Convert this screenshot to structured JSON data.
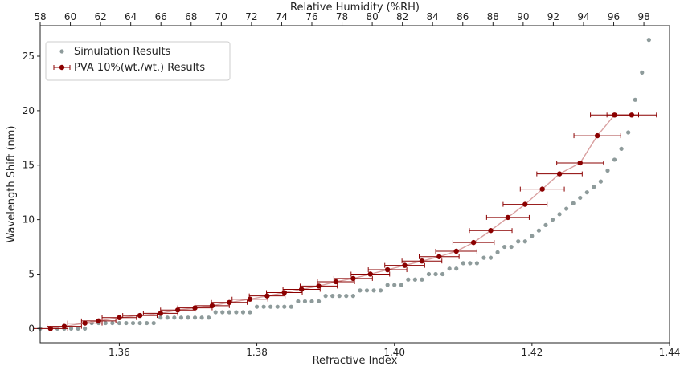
{
  "chart_data": {
    "type": "scatter",
    "xlabel": "Refractive Index",
    "ylabel": "Wavelength Shift (nm)",
    "x2label": "Relative Humidity (%RH)",
    "xlim": [
      1.3485,
      1.44
    ],
    "ylim": [
      -1.3,
      27.8
    ],
    "x2lim": [
      58.0,
      99.7
    ],
    "xticks": [
      1.36,
      1.38,
      1.4,
      1.42,
      1.44
    ],
    "xtick_labels": [
      "1.36",
      "1.38",
      "1.40",
      "1.42",
      "1.44"
    ],
    "yticks": [
      0,
      5,
      10,
      15,
      20,
      25
    ],
    "ytick_labels": [
      "0",
      "5",
      "10",
      "15",
      "20",
      "25"
    ],
    "x2ticks": [
      58,
      60,
      62,
      64,
      66,
      68,
      70,
      72,
      74,
      76,
      78,
      80,
      82,
      84,
      86,
      88,
      90,
      92,
      94,
      96,
      98
    ],
    "x2tick_labels": [
      "58",
      "60",
      "62",
      "64",
      "66",
      "68",
      "70",
      "72",
      "74",
      "76",
      "78",
      "80",
      "82",
      "84",
      "86",
      "88",
      "90",
      "92",
      "94",
      "96",
      "98"
    ],
    "grid": false,
    "legend_position": "top-left",
    "series": [
      {
        "name": "Simulation Results",
        "kind": "scatter",
        "color": "#8e9b9b",
        "x": [
          1.3485,
          1.35,
          1.351,
          1.352,
          1.353,
          1.354,
          1.355,
          1.356,
          1.357,
          1.358,
          1.359,
          1.36,
          1.361,
          1.362,
          1.363,
          1.364,
          1.365,
          1.366,
          1.367,
          1.368,
          1.369,
          1.37,
          1.371,
          1.372,
          1.373,
          1.374,
          1.375,
          1.376,
          1.377,
          1.378,
          1.379,
          1.38,
          1.381,
          1.382,
          1.383,
          1.384,
          1.385,
          1.386,
          1.387,
          1.388,
          1.389,
          1.39,
          1.391,
          1.392,
          1.393,
          1.394,
          1.395,
          1.396,
          1.397,
          1.398,
          1.399,
          1.4,
          1.401,
          1.402,
          1.403,
          1.404,
          1.405,
          1.406,
          1.407,
          1.408,
          1.409,
          1.41,
          1.411,
          1.412,
          1.413,
          1.414,
          1.415,
          1.416,
          1.417,
          1.418,
          1.419,
          1.42,
          1.421,
          1.422,
          1.423,
          1.424,
          1.425,
          1.426,
          1.427,
          1.428,
          1.429,
          1.43,
          1.431,
          1.432,
          1.433,
          1.434,
          1.435,
          1.436,
          1.437
        ],
        "y": [
          0,
          0,
          0,
          0,
          0,
          0,
          0,
          0.5,
          0.5,
          0.5,
          0.5,
          0.5,
          0.5,
          0.5,
          0.5,
          0.5,
          0.5,
          1,
          1,
          1,
          1,
          1,
          1,
          1,
          1,
          1.5,
          1.5,
          1.5,
          1.5,
          1.5,
          1.5,
          2,
          2,
          2,
          2,
          2,
          2,
          2.5,
          2.5,
          2.5,
          2.5,
          3,
          3,
          3,
          3,
          3,
          3.5,
          3.5,
          3.5,
          3.5,
          4,
          4,
          4,
          4.5,
          4.5,
          4.5,
          5,
          5,
          5,
          5.5,
          5.5,
          6,
          6,
          6,
          6.5,
          6.5,
          7,
          7.5,
          7.5,
          8,
          8,
          8.5,
          9,
          9.5,
          10,
          10.5,
          11,
          11.5,
          12,
          12.5,
          13,
          13.5,
          14.5,
          15.5,
          16.5,
          18,
          21,
          23.5,
          26.5
        ]
      },
      {
        "name": "PVA 10%(wt./wt.) Results",
        "kind": "errorbar",
        "color": "#8b0000",
        "line_color": "#d9a0a0",
        "x": [
          1.35,
          1.352,
          1.355,
          1.357,
          1.36,
          1.363,
          1.366,
          1.3685,
          1.371,
          1.3735,
          1.376,
          1.379,
          1.3815,
          1.384,
          1.3865,
          1.389,
          1.3915,
          1.394,
          1.3965,
          1.399,
          1.4015,
          1.404,
          1.4065,
          1.409,
          1.4115,
          1.414,
          1.4165,
          1.419,
          1.4215,
          1.424,
          1.427,
          1.4295,
          1.432,
          1.4345
        ],
        "y": [
          0.0,
          0.2,
          0.5,
          0.7,
          1.0,
          1.2,
          1.4,
          1.7,
          1.9,
          2.1,
          2.4,
          2.7,
          3.0,
          3.3,
          3.6,
          3.9,
          4.3,
          4.6,
          5.0,
          5.4,
          5.8,
          6.2,
          6.6,
          7.1,
          7.9,
          9.0,
          10.2,
          11.4,
          12.8,
          14.2,
          15.2,
          17.7,
          19.6,
          19.6
        ],
        "xerr": [
          0.0025,
          0.0025,
          0.0025,
          0.0025,
          0.0025,
          0.0025,
          0.0025,
          0.0025,
          0.0025,
          0.0025,
          0.0026,
          0.0026,
          0.0026,
          0.0026,
          0.0027,
          0.0027,
          0.0027,
          0.0028,
          0.0028,
          0.0028,
          0.0029,
          0.0029,
          0.0029,
          0.003,
          0.003,
          0.0031,
          0.0031,
          0.0032,
          0.0032,
          0.0033,
          0.0034,
          0.0034,
          0.0035,
          0.0036
        ]
      }
    ]
  }
}
